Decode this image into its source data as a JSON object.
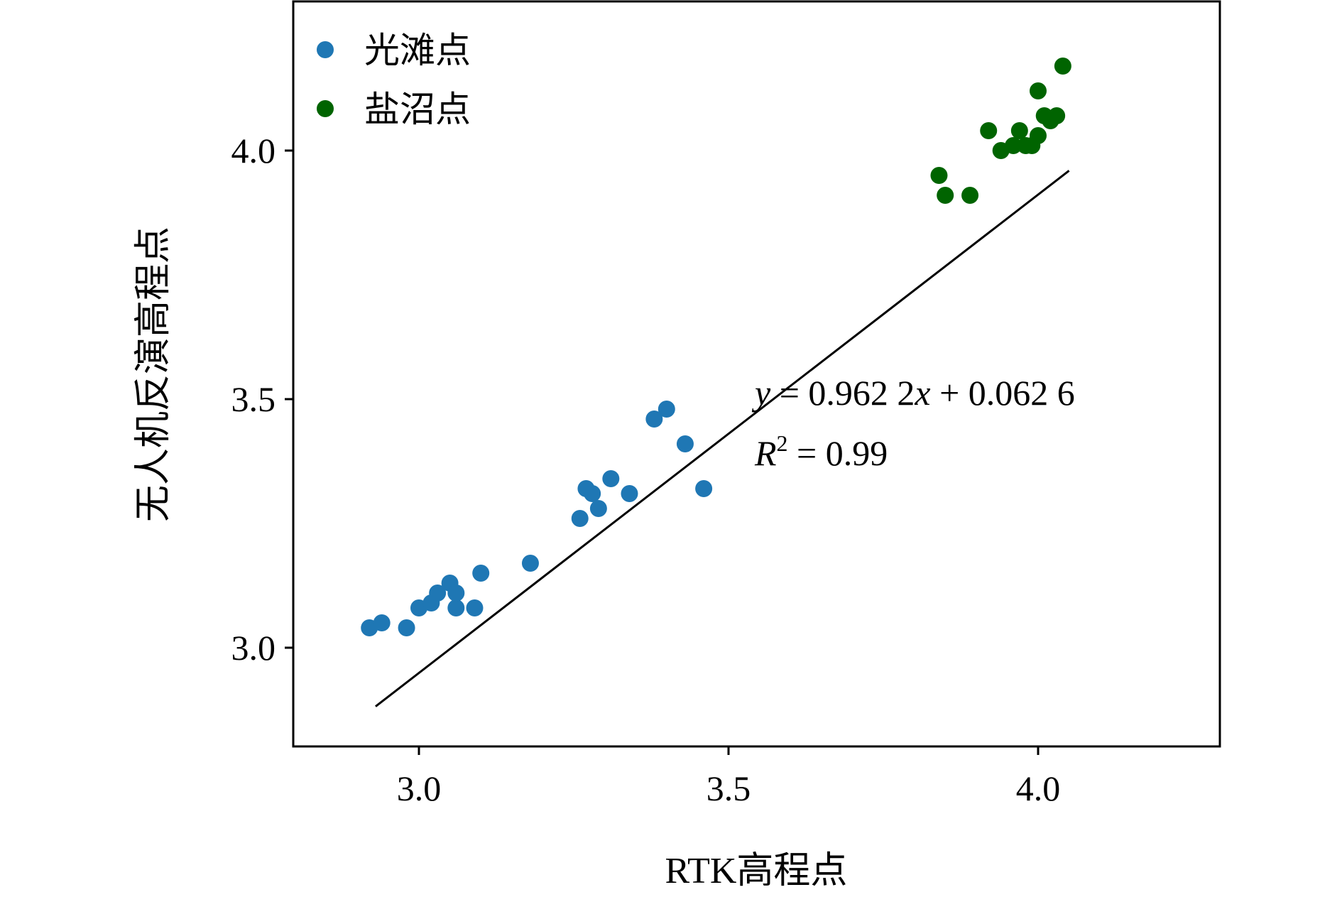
{
  "chart_data": {
    "type": "scatter",
    "xlabel": "RTK高程点",
    "ylabel": "无人机反演高程点",
    "xlim": [
      2.8,
      4.3
    ],
    "ylim": [
      2.8,
      4.3
    ],
    "x_ticks": [
      3.0,
      3.5,
      4.0
    ],
    "x_tick_labels": [
      "3.0",
      "3.5",
      "4.0"
    ],
    "y_ticks": [
      3.0,
      3.5,
      4.0
    ],
    "y_tick_labels": [
      "3.0",
      "3.5",
      "4.0"
    ],
    "grid": false,
    "legend_position": "top-left",
    "series": [
      {
        "name": "光滩点",
        "color": "#1f77b4",
        "points": [
          [
            2.92,
            3.04
          ],
          [
            2.94,
            3.05
          ],
          [
            2.98,
            3.04
          ],
          [
            3.0,
            3.08
          ],
          [
            3.02,
            3.09
          ],
          [
            3.03,
            3.11
          ],
          [
            3.05,
            3.13
          ],
          [
            3.06,
            3.08
          ],
          [
            3.06,
            3.11
          ],
          [
            3.09,
            3.08
          ],
          [
            3.1,
            3.15
          ],
          [
            3.18,
            3.17
          ],
          [
            3.26,
            3.26
          ],
          [
            3.27,
            3.32
          ],
          [
            3.28,
            3.31
          ],
          [
            3.29,
            3.28
          ],
          [
            3.31,
            3.34
          ],
          [
            3.34,
            3.31
          ],
          [
            3.38,
            3.46
          ],
          [
            3.4,
            3.48
          ],
          [
            3.43,
            3.41
          ],
          [
            3.46,
            3.32
          ]
        ]
      },
      {
        "name": "盐沼点",
        "color": "#006400",
        "points": [
          [
            3.84,
            3.95
          ],
          [
            3.85,
            3.91
          ],
          [
            3.89,
            3.91
          ],
          [
            3.92,
            4.04
          ],
          [
            3.94,
            4.0
          ],
          [
            3.96,
            4.01
          ],
          [
            3.97,
            4.04
          ],
          [
            3.98,
            4.01
          ],
          [
            3.99,
            4.01
          ],
          [
            4.0,
            4.03
          ],
          [
            4.0,
            4.12
          ],
          [
            4.01,
            4.07
          ],
          [
            4.02,
            4.06
          ],
          [
            4.03,
            4.07
          ],
          [
            4.04,
            4.17
          ]
        ]
      }
    ],
    "fit_line": {
      "slope": 0.9622,
      "intercept": 0.0626,
      "x_range": [
        2.93,
        4.05
      ],
      "color": "#000000"
    },
    "annotations": {
      "equation": "y = 0.962 2x + 0.062 6",
      "r2_label": "R2 = 0.99",
      "equation_parts": {
        "var_y": "y",
        "eq_mid": " = 0.962 2",
        "var_x": "x",
        "eq_tail": " + 0.062 6"
      },
      "r2_parts": {
        "var_r": "R",
        "power": "2",
        "value": " = 0.99"
      }
    }
  }
}
